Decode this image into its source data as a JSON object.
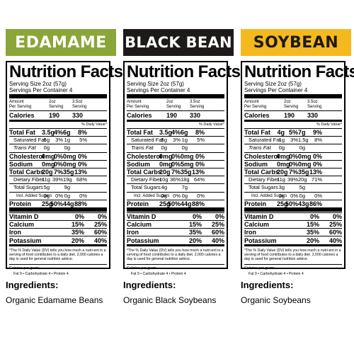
{
  "colors": {
    "edamame": "#8aa638",
    "black_bean": "#1e1a1a",
    "soybean": "#f5b920"
  },
  "serving_size": "Serving Size 2oz (57g)",
  "servings_per_container": "Servings Per Container 4",
  "header": {
    "amount": "Amount",
    "per_serving": "Per Serving",
    "col1a": "2oz",
    "col1b": "Serving",
    "col2a": "3.5oz",
    "col2b": "Serving"
  },
  "dv_header": "% Daily Value*",
  "labels": {
    "title": "Nutrition Facts",
    "calories": "Calories",
    "total_fat": "Total Fat",
    "sat_fat": "Saturated Fat",
    "trans_fat": "Trans Fat",
    "cholesterol": "Cholesterol",
    "sodium": "Sodium",
    "carbs": "Total Carbs.",
    "fiber": "Dietary Fiber",
    "sugars": "Total Sugars",
    "added_sugars": "Incl. Added Sugars",
    "protein": "Protein",
    "vitd": "Vitamin D",
    "calcium": "Calcium",
    "iron": "Iron",
    "potassium": "Potassium"
  },
  "footnote": "*The % Daily Value (DV) tells you how much a nutri-ent in a serving of food contributes to a daily diet. 2,000 calories a day is used for general nutrition advice.",
  "calories_per_gram": "Calories per gram:",
  "cal_values": "Fat 9   •   Carbohydrate 4   •   Protein 4",
  "ingredients_label": "Ingredients:",
  "products": [
    {
      "name": "EDAMAME",
      "ingredients": "Organic Edamame Beans",
      "calories": [
        "190",
        "330"
      ],
      "total_fat": [
        "3.5g",
        "4%",
        "6g",
        "8%"
      ],
      "sat_fat": [
        ".5g",
        "3%",
        "1g",
        "5%"
      ],
      "trans_fat": [
        "0g",
        "",
        "0g",
        ""
      ],
      "cholesterol": [
        "0mg",
        "0%",
        "0mg",
        "0%"
      ],
      "sodium": [
        "0mg",
        "0%",
        "0mg",
        "0%"
      ],
      "carbs": [
        "20g",
        "7%",
        "35g",
        "13%"
      ],
      "fiber": [
        "11g",
        "39%",
        "19g",
        "68%"
      ],
      "sugars": [
        "5g",
        "",
        "9g",
        ""
      ],
      "added_sugars": [
        "0g",
        "0%",
        "0g",
        "0%"
      ],
      "protein": [
        "25g",
        "50%",
        "44g",
        "88%"
      ],
      "vitd": [
        "0%",
        "0%"
      ],
      "calcium": [
        "15%",
        "25%"
      ],
      "iron": [
        "35%",
        "60%"
      ],
      "potassium": [
        "20%",
        "40%"
      ]
    },
    {
      "name": "BLACK BEAN",
      "ingredients": "Organic Black Soybeans",
      "calories": [
        "190",
        "330"
      ],
      "total_fat": [
        "3.5g",
        "4%",
        "6g",
        "8%"
      ],
      "sat_fat": [
        ".5g",
        "3%",
        "1g",
        "5%"
      ],
      "trans_fat": [
        "0g",
        "",
        "0g",
        ""
      ],
      "cholesterol": [
        "0mg",
        "0%",
        "0mg",
        "0%"
      ],
      "sodium": [
        "0mg",
        "0%",
        "5mg",
        "0%"
      ],
      "carbs": [
        "20g",
        "7%",
        "35g",
        "13%"
      ],
      "fiber": [
        "10g",
        "36%",
        "18g",
        "64%"
      ],
      "sugars": [
        "4g",
        "",
        "7g",
        ""
      ],
      "added_sugars": [
        "0g",
        "0%",
        "0g",
        "0%"
      ],
      "protein": [
        "25g",
        "50%",
        "44g",
        "88%"
      ],
      "vitd": [
        "0%",
        "0%"
      ],
      "calcium": [
        "15%",
        "25%"
      ],
      "iron": [
        "35%",
        "60%"
      ],
      "potassium": [
        "20%",
        "40%"
      ]
    },
    {
      "name": "SOYBEAN",
      "ingredients": "Organic Soybeans",
      "calories": [
        "190",
        "330"
      ],
      "total_fat": [
        "4g",
        "5%",
        "7g",
        "9%"
      ],
      "sat_fat": [
        "1g",
        "3%",
        "1.5g",
        "8%"
      ],
      "trans_fat": [
        "0g",
        "",
        "0g",
        ""
      ],
      "cholesterol": [
        "0mg",
        "0%",
        "0mg",
        "0%"
      ],
      "sodium": [
        "0mg",
        "0%",
        "0mg",
        "0%"
      ],
      "carbs": [
        "20g",
        "7%",
        "35g",
        "13%"
      ],
      "fiber": [
        "11g",
        "39%",
        "20g",
        "71%"
      ],
      "sugars": [
        "3g",
        "",
        "5g",
        ""
      ],
      "added_sugars": [
        "0g",
        "0%",
        "0g",
        "0%"
      ],
      "protein": [
        "25g",
        "50%",
        "43g",
        "86%"
      ],
      "vitd": [
        "0%",
        "0%"
      ],
      "calcium": [
        "15%",
        "25%"
      ],
      "iron": [
        "35%",
        "60%"
      ],
      "potassium": [
        "20%",
        "40%"
      ]
    }
  ]
}
